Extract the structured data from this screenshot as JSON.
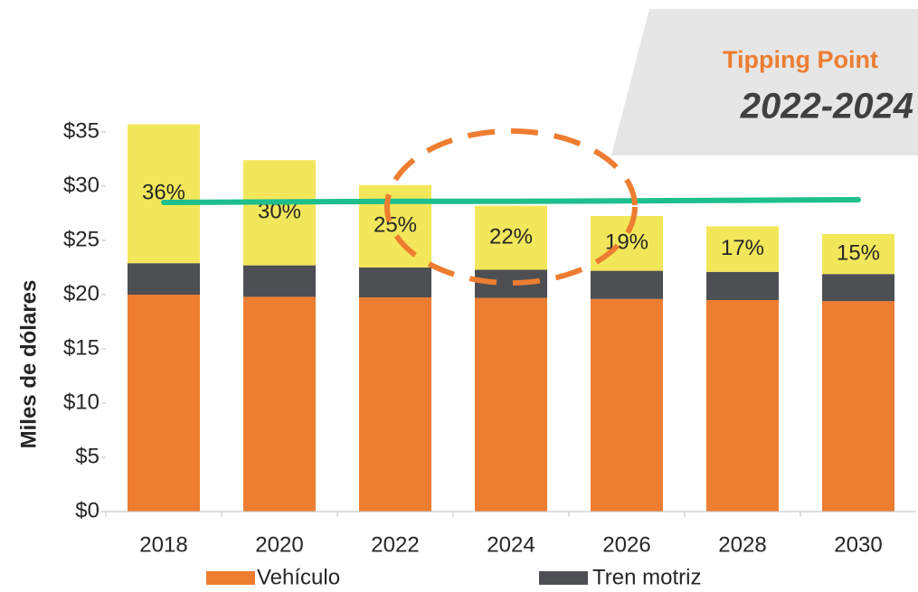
{
  "chart_data": {
    "type": "stacked_bar",
    "callout": {
      "title": "Tipping Point",
      "subtitle": "2022-2024"
    },
    "y_axis_label": "Miles de dólares",
    "categories": [
      "2018",
      "2020",
      "2022",
      "2024",
      "2026",
      "2028",
      "2030"
    ],
    "series": [
      {
        "name": "Vehículo",
        "color": "#ed7d31",
        "values": [
          20.0,
          19.8,
          19.75,
          19.7,
          19.6,
          19.5,
          19.4
        ]
      },
      {
        "name": "Tren motriz",
        "color": "#4d4f53",
        "values": [
          2.9,
          2.9,
          2.75,
          2.6,
          2.6,
          2.6,
          2.5
        ]
      },
      {
        "color": "#f2e75a",
        "values": [
          12.8,
          9.7,
          7.6,
          5.9,
          5.05,
          4.2,
          3.7
        ],
        "bar_labels": [
          "36%",
          "30%",
          "25%",
          "22%",
          "19%",
          "17%",
          "15%"
        ]
      }
    ],
    "line": {
      "color": "#1dbf8c",
      "values": [
        28.5,
        28.55,
        28.6,
        28.6,
        28.65,
        28.7,
        28.75
      ]
    },
    "ylim": [
      0,
      35
    ],
    "yticks": [
      {
        "value": 0,
        "label": "$0"
      },
      {
        "value": 5,
        "label": "$5"
      },
      {
        "value": 10,
        "label": "$10"
      },
      {
        "value": 15,
        "label": "$15"
      },
      {
        "value": 20,
        "label": "$20"
      },
      {
        "value": 25,
        "label": "$25"
      },
      {
        "value": 30,
        "label": "$30"
      },
      {
        "value": 35,
        "label": "$35"
      }
    ]
  }
}
